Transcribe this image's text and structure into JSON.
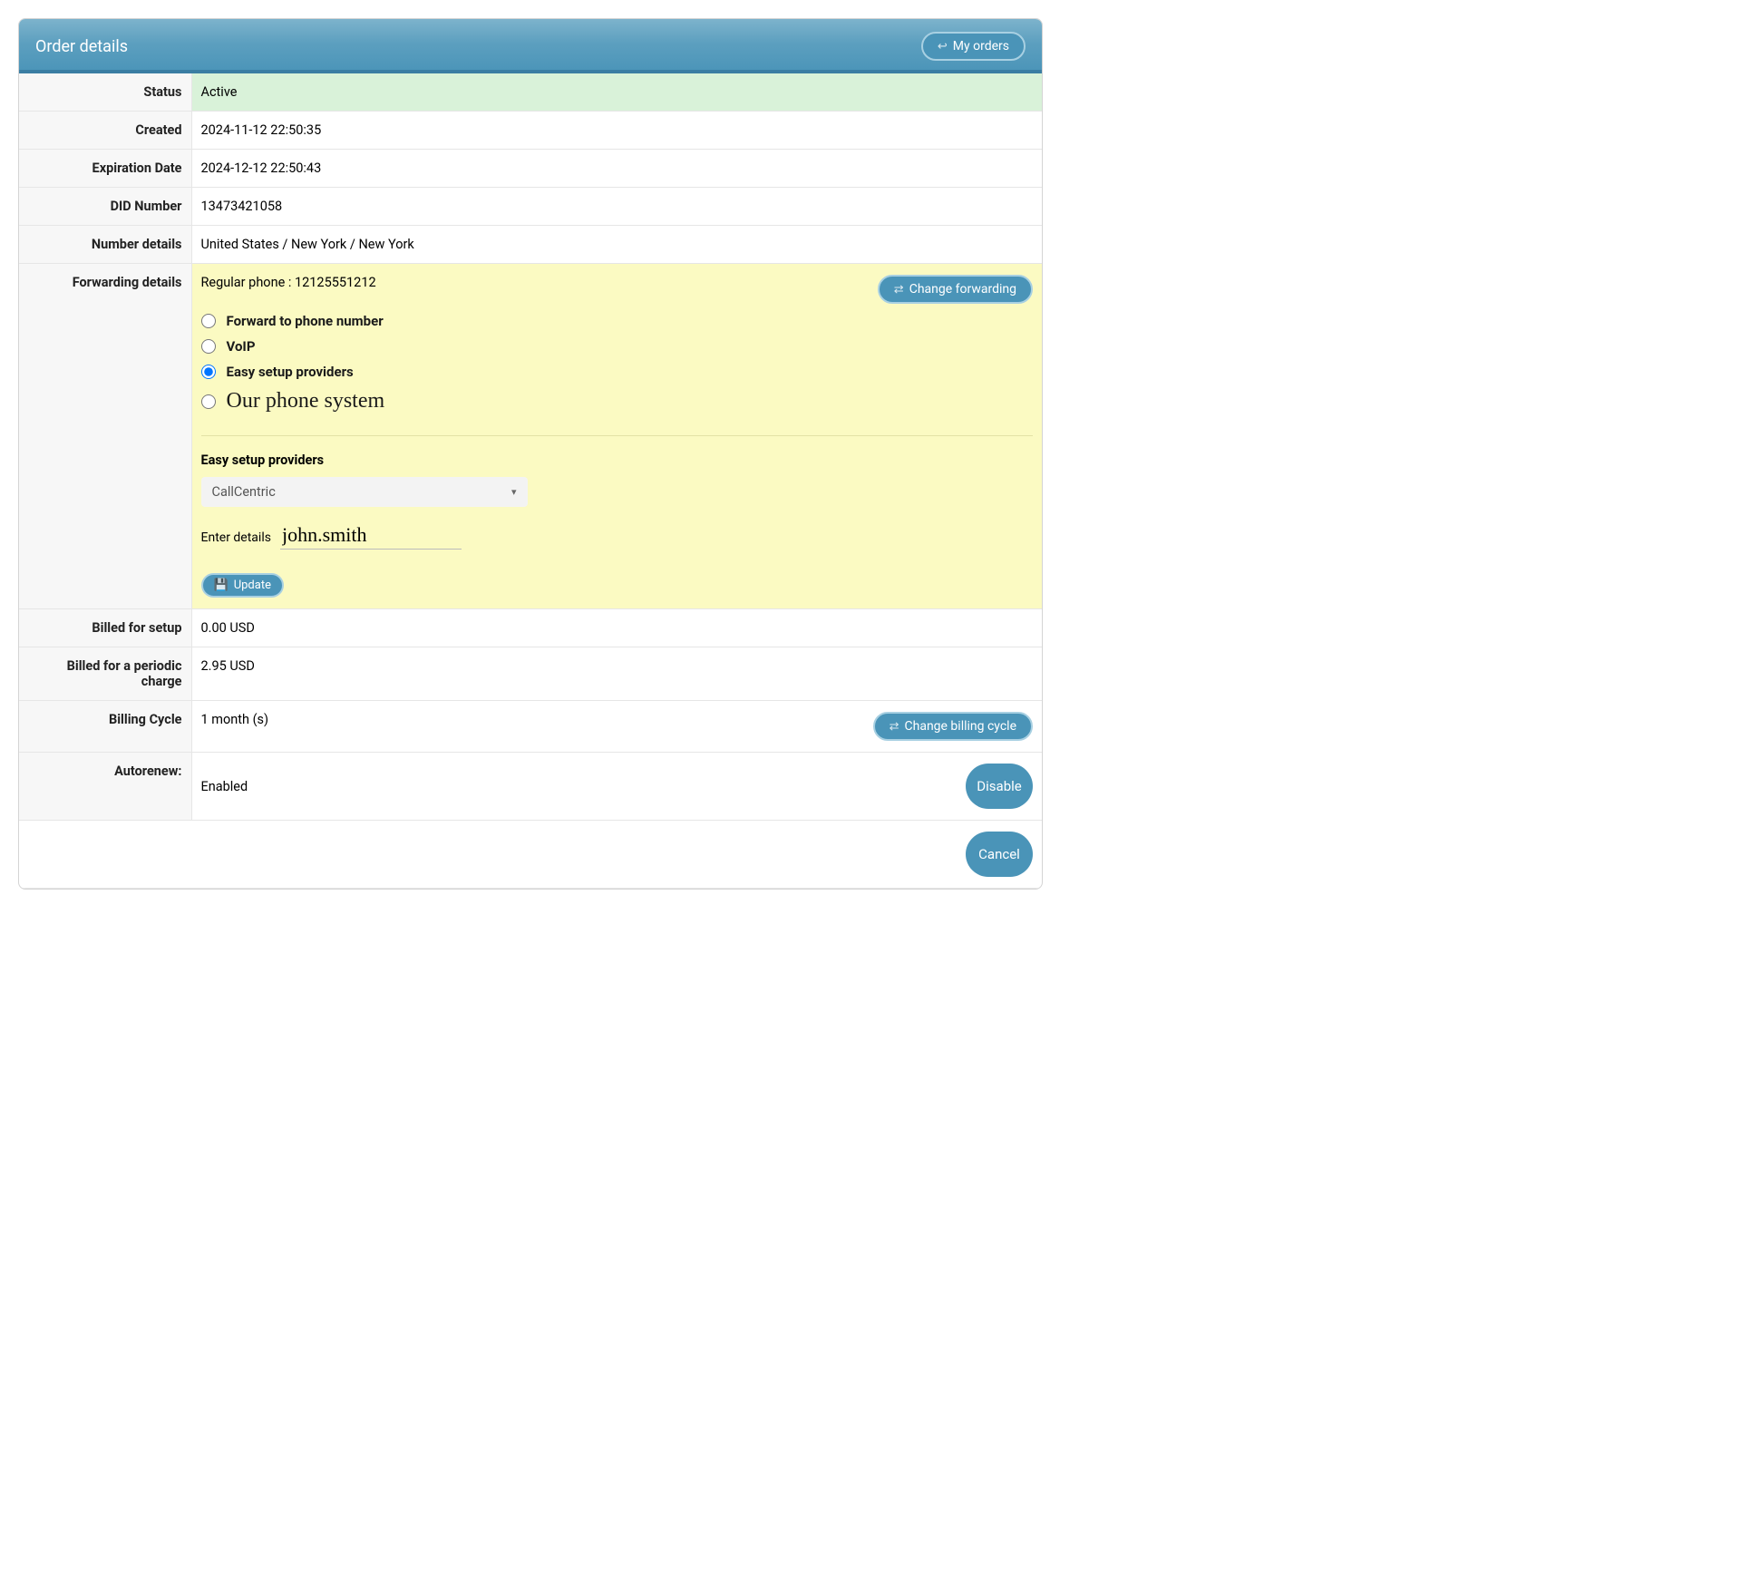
{
  "colors": {
    "header_bg_top": "#7db3cc",
    "header_bg_bottom": "#4a94b8",
    "button_bg": "#4a94b8",
    "button_border": "#a8d0e2",
    "row_green": "#d9f2d9",
    "row_yellow": "#fbfac2",
    "border": "#e6e6e6",
    "th_bg": "#f7f7f7"
  },
  "header": {
    "title": "Order details",
    "my_orders_label": "My orders"
  },
  "rows": {
    "status": {
      "label": "Status",
      "value": "Active"
    },
    "created": {
      "label": "Created",
      "value": "2024-11-12 22:50:35"
    },
    "expiration": {
      "label": "Expiration Date",
      "value": "2024-12-12 22:50:43"
    },
    "did": {
      "label": "DID Number",
      "value": "13473421058"
    },
    "number_details": {
      "label": "Number details",
      "value": "United States / New York / New York"
    },
    "forwarding": {
      "label": "Forwarding details",
      "summary": "Regular phone  : 12125551212",
      "change_btn": "Change forwarding",
      "options": {
        "forward_phone": "Forward to phone number",
        "voip": "VoIP",
        "easy": "Easy setup providers",
        "our_system": "Our phone system"
      },
      "selected": "easy",
      "section_label": "Easy setup providers",
      "provider_selected": "CallCentric",
      "enter_label": "Enter details",
      "enter_value": "john.smith",
      "update_btn": "Update"
    },
    "billed_setup": {
      "label": "Billed for setup",
      "value": "0.00 USD"
    },
    "billed_periodic": {
      "label": "Billed for a periodic charge",
      "value": "2.95 USD"
    },
    "billing_cycle": {
      "label": "Billing Cycle",
      "value": "1 month (s)",
      "change_btn": "Change billing cycle"
    },
    "autorenew": {
      "label": "Autorenew:",
      "value": "Enabled",
      "disable_btn": "Disable"
    },
    "cancel_btn": "Cancel"
  }
}
